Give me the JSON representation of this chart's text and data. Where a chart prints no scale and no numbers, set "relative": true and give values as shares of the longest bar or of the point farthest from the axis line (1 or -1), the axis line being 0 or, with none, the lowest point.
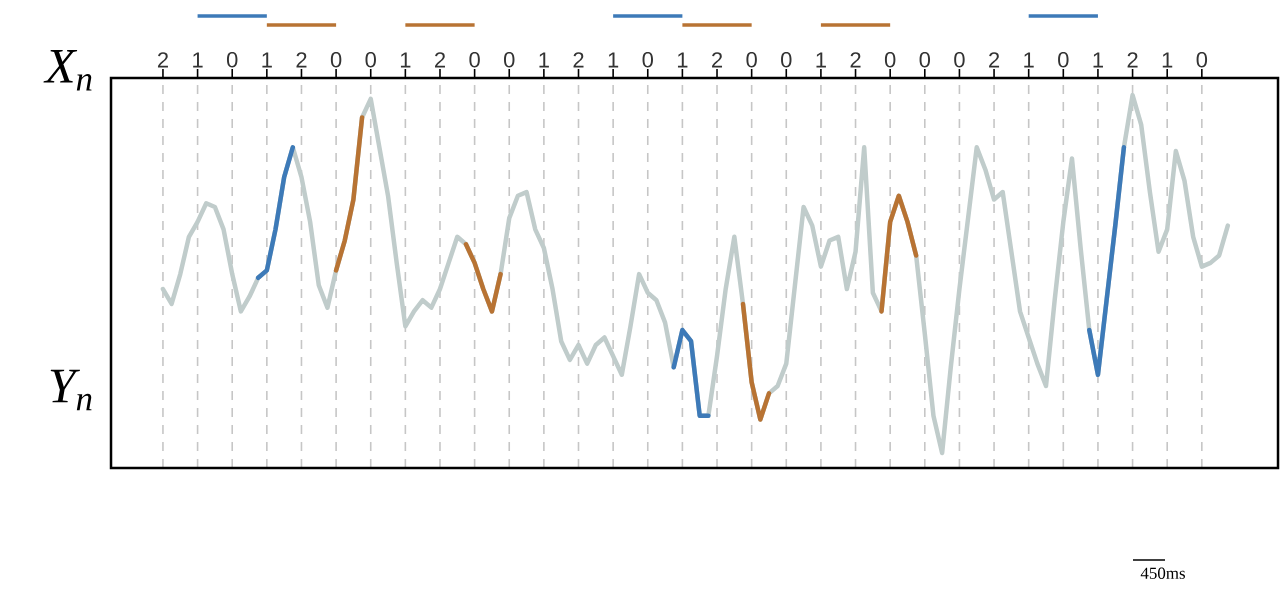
{
  "chart_data": {
    "type": "line",
    "relative": true,
    "xlabel": "X$_{n}$",
    "ylabel": "Y$_{n}$",
    "annotations": [
      "450ms"
    ],
    "categories": [
      "2",
      null,
      null,
      null,
      "1",
      null,
      null,
      null,
      "0",
      null,
      null,
      null,
      "1",
      null,
      null,
      null,
      "2",
      null,
      null,
      null,
      "0",
      null,
      null,
      null,
      "0",
      null,
      null,
      null,
      "1",
      null,
      null,
      null,
      "2",
      null,
      null,
      null,
      "0",
      null,
      null,
      null,
      "0",
      null,
      null,
      null,
      "1",
      null,
      null,
      null,
      "2",
      null,
      null,
      null,
      "1",
      null,
      null,
      null,
      "0",
      null,
      null,
      null,
      "1",
      null,
      null,
      null,
      "2",
      null,
      null,
      null,
      "0",
      null,
      null,
      null,
      "0",
      null,
      null,
      null,
      "1",
      null,
      null,
      null,
      "2",
      null,
      null,
      null,
      "0",
      null,
      null,
      null,
      "0",
      null,
      null,
      null,
      "0",
      null,
      null,
      null,
      "2",
      null,
      null,
      null,
      "1",
      null,
      null,
      null,
      "0",
      null,
      null,
      null,
      "1",
      null,
      null,
      null,
      "2",
      null,
      null,
      null,
      "1",
      null,
      null,
      null,
      "0",
      null,
      null,
      null
    ],
    "grid": "x",
    "series": [
      {
        "color": "#c0cccb",
        "values": [
          0.48,
          0.44,
          0.52,
          0.62,
          0.66,
          0.71,
          0.7,
          0.64,
          0.52,
          0.42,
          0.46,
          0.51,
          0.53,
          0.64,
          0.78,
          0.86,
          0.78,
          0.66,
          0.49,
          0.43,
          0.53,
          0.61,
          0.72,
          0.94,
          0.99,
          0.86,
          0.73,
          0.55,
          0.38,
          0.42,
          0.45,
          0.43,
          0.48,
          0.55,
          0.62,
          0.6,
          0.55,
          0.48,
          0.42,
          0.52,
          0.67,
          0.73,
          0.74,
          0.64,
          0.59,
          0.48,
          0.34,
          0.29,
          0.33,
          0.28,
          0.33,
          0.35,
          0.3,
          0.25,
          0.38,
          0.52,
          0.47,
          0.45,
          0.39,
          0.27,
          0.37,
          0.34,
          0.14,
          0.14,
          0.3,
          0.48,
          0.62,
          0.44,
          0.23,
          0.13,
          0.2,
          0.22,
          0.28,
          0.49,
          0.7,
          0.65,
          0.54,
          0.61,
          0.62,
          0.48,
          0.58,
          0.86,
          0.47,
          0.42,
          0.66,
          0.73,
          0.66,
          0.57,
          0.36,
          0.14,
          0.04,
          0.27,
          0.48,
          0.67,
          0.86,
          0.8,
          0.72,
          0.74,
          0.58,
          0.42,
          0.35,
          0.28,
          0.22,
          0.45,
          0.66,
          0.83,
          0.59,
          0.37,
          0.25,
          0.45,
          0.65,
          0.86,
          1.0,
          0.92,
          0.74,
          0.58,
          0.64,
          0.85,
          0.77,
          0.62,
          0.54,
          0.55,
          0.57,
          0.65
        ]
      },
      {
        "color": "#3d7ab8",
        "values": [
          null,
          null,
          null,
          null,
          null,
          null,
          null,
          null,
          null,
          null,
          null,
          0.51,
          0.53,
          0.64,
          0.78,
          0.86,
          null,
          null,
          null,
          null,
          null,
          null,
          null,
          null,
          null,
          null,
          null,
          null,
          null,
          null,
          null,
          null,
          null,
          null,
          null,
          null,
          null,
          null,
          null,
          null,
          null,
          null,
          null,
          null,
          null,
          null,
          null,
          null,
          null,
          null,
          null,
          null,
          null,
          null,
          null,
          null,
          null,
          null,
          null,
          0.27,
          0.37,
          0.34,
          0.14,
          0.14,
          null,
          null,
          null,
          null,
          null,
          null,
          null,
          null,
          null,
          null,
          null,
          null,
          null,
          null,
          null,
          null,
          null,
          null,
          null,
          null,
          null,
          null,
          null,
          null,
          null,
          null,
          null,
          null,
          null,
          null,
          null,
          null,
          null,
          null,
          null,
          null,
          null,
          null,
          null,
          null,
          null,
          null,
          null,
          0.37,
          0.25,
          0.45,
          0.65,
          0.86,
          null,
          null,
          null,
          null,
          null,
          null,
          null,
          null,
          null,
          null,
          null,
          null
        ]
      },
      {
        "color": "#b87333",
        "values": [
          null,
          null,
          null,
          null,
          null,
          null,
          null,
          null,
          null,
          null,
          null,
          null,
          null,
          null,
          null,
          null,
          null,
          null,
          null,
          null,
          0.53,
          0.61,
          0.72,
          0.94,
          null,
          null,
          null,
          null,
          null,
          null,
          null,
          null,
          null,
          null,
          null,
          0.6,
          0.55,
          0.48,
          0.42,
          0.52,
          null,
          null,
          null,
          null,
          null,
          null,
          null,
          null,
          null,
          null,
          null,
          null,
          null,
          null,
          null,
          null,
          null,
          null,
          null,
          null,
          null,
          null,
          null,
          null,
          null,
          null,
          null,
          0.44,
          0.23,
          0.13,
          0.2,
          null,
          null,
          null,
          null,
          null,
          null,
          null,
          null,
          null,
          null,
          null,
          null,
          0.42,
          0.66,
          0.73,
          0.66,
          0.57,
          null,
          null,
          null,
          null,
          null,
          null,
          null,
          null,
          null,
          null,
          null,
          null,
          null,
          null,
          null,
          null,
          null,
          null,
          null,
          null,
          null,
          null,
          null,
          null,
          null,
          null,
          null,
          null,
          null,
          null,
          null,
          null,
          null,
          null,
          null,
          null
        ]
      }
    ]
  }
}
